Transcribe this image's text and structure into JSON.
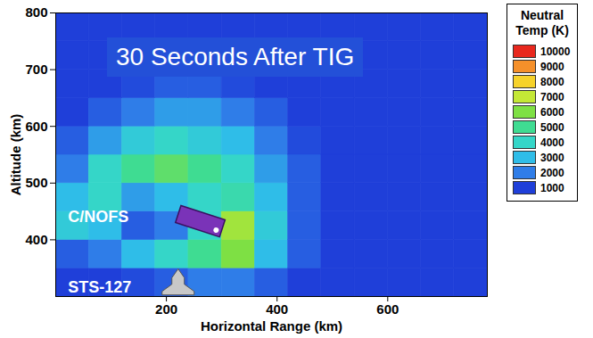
{
  "chart_data": {
    "type": "heatmap",
    "title": "30 Seconds After TIG",
    "x_label": "Horizontal Range (km)",
    "y_label": "Altitude (km)",
    "xlim": [
      0,
      780
    ],
    "ylim": [
      300,
      800
    ],
    "xticks": [
      200,
      400,
      600
    ],
    "yticks": [
      400,
      500,
      600,
      700,
      800
    ],
    "x_bins": [
      0,
      60,
      120,
      180,
      240,
      300,
      360,
      420,
      480,
      540,
      600,
      660,
      720,
      780
    ],
    "y_bins": [
      300,
      350,
      400,
      450,
      500,
      550,
      600,
      650,
      700,
      750,
      800
    ],
    "cells": [
      [
        1000,
        1000,
        1200,
        1500,
        2000,
        2000,
        1500,
        1000,
        1000,
        1000,
        1000,
        1000,
        1000
      ],
      [
        1500,
        2000,
        3000,
        4000,
        5000,
        6000,
        3000,
        1500,
        1000,
        1000,
        1000,
        1000,
        1000
      ],
      [
        3500,
        3000,
        1500,
        2000,
        4000,
        6500,
        3500,
        1500,
        1000,
        1000,
        1000,
        1000,
        1000
      ],
      [
        3000,
        4000,
        2500,
        3000,
        4000,
        4500,
        3000,
        1500,
        1000,
        1000,
        1000,
        1000,
        1000
      ],
      [
        2000,
        4000,
        5000,
        5500,
        5000,
        4000,
        2500,
        1500,
        1000,
        1000,
        1000,
        1000,
        1000
      ],
      [
        1500,
        2500,
        3500,
        4000,
        3500,
        3000,
        2000,
        1200,
        1000,
        1000,
        1000,
        1000,
        1000
      ],
      [
        1000,
        1500,
        2000,
        2500,
        2500,
        2000,
        1500,
        1000,
        1000,
        1000,
        1000,
        1000,
        1000
      ],
      [
        1000,
        1000,
        1200,
        1500,
        1500,
        1200,
        1000,
        1000,
        1000,
        1000,
        1000,
        1000,
        1000
      ],
      [
        1000,
        1000,
        1000,
        1000,
        1000,
        1000,
        1000,
        1000,
        1000,
        1000,
        1000,
        1000,
        1000
      ],
      [
        1000,
        1000,
        1000,
        1000,
        1000,
        1000,
        1000,
        1000,
        1000,
        1000,
        1000,
        1000,
        1000
      ]
    ],
    "colorbar": {
      "label": "Neutral Temp (K)",
      "range": [
        1000,
        10000
      ],
      "ticks": [
        1000,
        2000,
        3000,
        4000,
        5000,
        6000,
        7000,
        8000,
        9000,
        10000
      ],
      "colors": [
        "#1f3fd9",
        "#2f7de8",
        "#2fbde8",
        "#35d6c8",
        "#3fdc92",
        "#7ee044",
        "#c4e836",
        "#f6d22a",
        "#f5902a",
        "#e8281e"
      ]
    },
    "annotations": [
      "C/NOFS",
      "STS-127"
    ]
  }
}
